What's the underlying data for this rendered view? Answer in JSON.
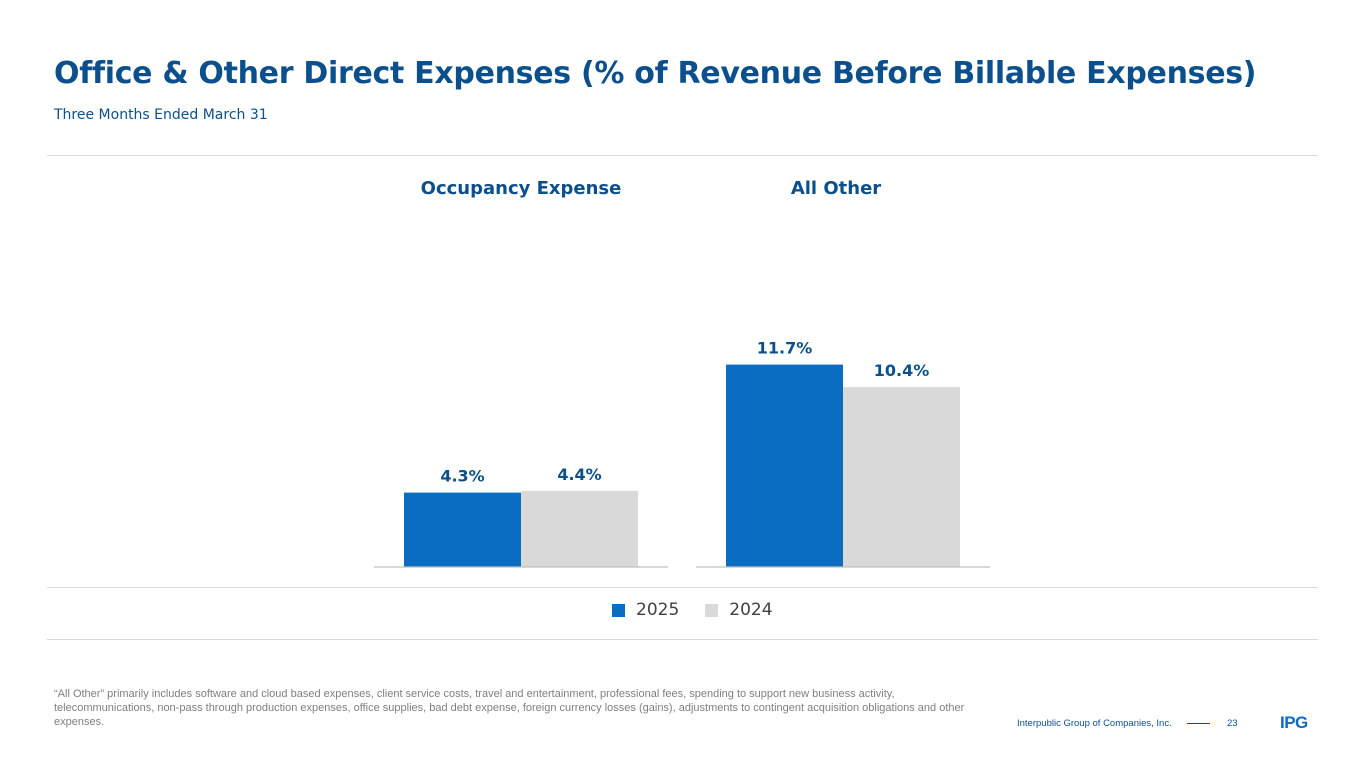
{
  "header": {
    "title": "Office & Other Direct Expenses (% of Revenue Before Billable Expenses)",
    "subtitle": "Three Months Ended March 31"
  },
  "chart_data": [
    {
      "type": "bar",
      "title": "Occupancy Expense",
      "series": [
        {
          "name": "2025",
          "values": [
            4.3
          ],
          "labels": [
            "4.3%"
          ],
          "color": "#0B6DC2"
        },
        {
          "name": "2024",
          "values": [
            4.4
          ],
          "labels": [
            "4.4%"
          ],
          "color": "#D9D9D9"
        }
      ],
      "unit": "%",
      "ylim": [
        0,
        14
      ],
      "grid": false,
      "legend": "bottom-center"
    },
    {
      "type": "bar",
      "title": "All Other",
      "series": [
        {
          "name": "2025",
          "values": [
            11.7
          ],
          "labels": [
            "11.7%"
          ],
          "color": "#0B6DC2"
        },
        {
          "name": "2024",
          "values": [
            10.4
          ],
          "labels": [
            "10.4%"
          ],
          "color": "#D9D9D9"
        }
      ],
      "unit": "%",
      "ylim": [
        0,
        14
      ],
      "grid": false,
      "legend": "bottom-center"
    }
  ],
  "legend": {
    "items": [
      {
        "label": "2025",
        "color": "#0B6DC2"
      },
      {
        "label": "2024",
        "color": "#D9D9D9"
      }
    ]
  },
  "footnote": "“All Other” primarily includes software and cloud based expenses, client service costs, travel and entertainment, professional fees, spending to support new business activity, telecommunications, non-pass through production expenses, office supplies, bad debt expense, foreign currency losses (gains), adjustments to contingent acquisition obligations and other expenses.",
  "footer": {
    "company": "Interpublic Group of Companies, Inc.",
    "page": "23",
    "logo": "IPG"
  }
}
